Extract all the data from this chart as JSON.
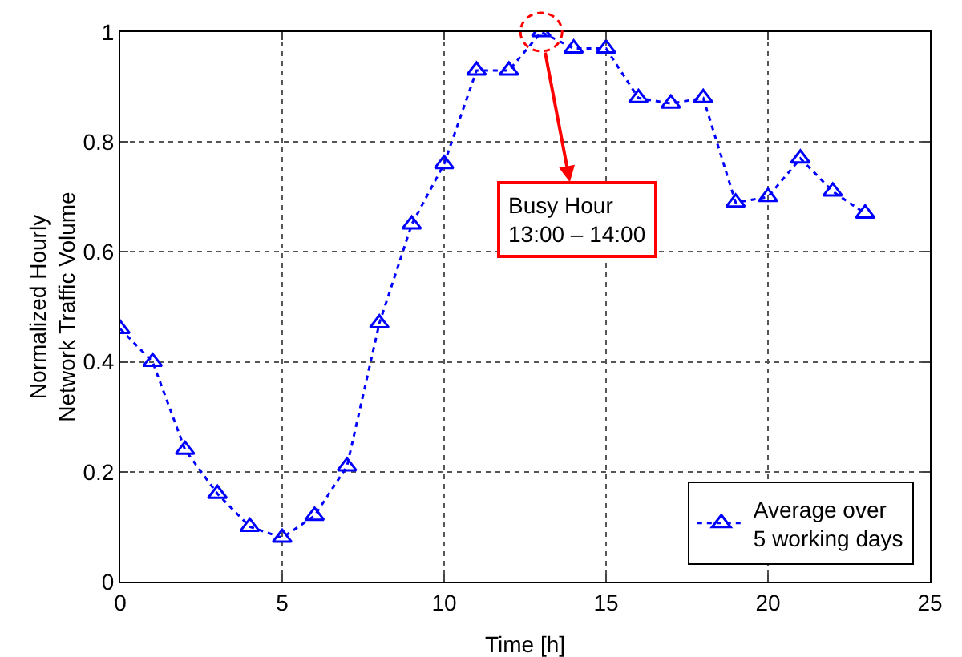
{
  "chart_data": {
    "type": "line",
    "xlabel": "Time [h]",
    "ylabel": "Normalized Hourly\nNetwork Traffic Volume",
    "x": [
      0,
      1,
      2,
      3,
      4,
      5,
      6,
      7,
      8,
      9,
      10,
      11,
      12,
      13,
      14,
      15,
      16,
      17,
      18,
      19,
      20,
      21,
      22,
      23
    ],
    "series": [
      {
        "name": "Average over\n5 working days",
        "color": "#0000ff",
        "values": [
          0.46,
          0.4,
          0.24,
          0.16,
          0.1,
          0.08,
          0.12,
          0.21,
          0.47,
          0.65,
          0.76,
          0.93,
          0.93,
          1.0,
          0.97,
          0.97,
          0.88,
          0.87,
          0.88,
          0.69,
          0.7,
          0.77,
          0.71,
          0.67
        ]
      }
    ],
    "xlim": [
      0,
      25
    ],
    "xticks": [
      0,
      5,
      10,
      15,
      20,
      25
    ],
    "ylim": [
      0,
      1
    ],
    "yticks": [
      0,
      0.2,
      0.4,
      0.6,
      0.8,
      1
    ],
    "annotations": [
      {
        "text": "Busy Hour\n13:00 – 14:00",
        "x": 13,
        "y": 1.0
      }
    ],
    "grid": true,
    "legend": "bottom right",
    "marker": "triangle",
    "line_style": "dotted"
  }
}
